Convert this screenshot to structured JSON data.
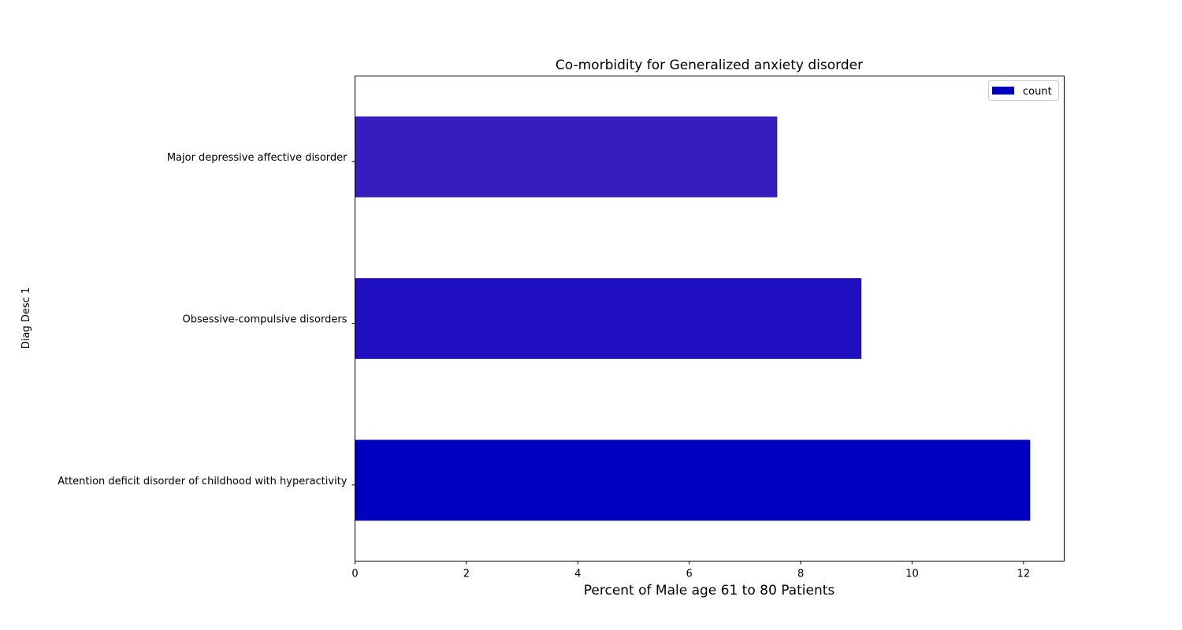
{
  "chart_data": {
    "type": "bar",
    "orientation": "horizontal",
    "title": "Co-morbidity for Generalized anxiety disorder",
    "xlabel": "Percent of Male age 61 to 80 Patients",
    "ylabel": "Diag Desc 1",
    "categories": [
      "Attention deficit disorder of childhood with hyperactivity",
      "Obsessive-compulsive disorders",
      "Major depressive affective disorder"
    ],
    "series": [
      {
        "name": "count",
        "values": [
          12.12,
          9.09,
          7.58
        ],
        "colors": [
          "#0000c0",
          "#1f0fc0",
          "#361dc0"
        ],
        "legend_color": "#0000c0"
      }
    ],
    "xlim": [
      0,
      12.73
    ],
    "xticks": [
      0,
      2,
      4,
      6,
      8,
      10,
      12
    ],
    "grid": false,
    "legend_position": "top-right"
  }
}
